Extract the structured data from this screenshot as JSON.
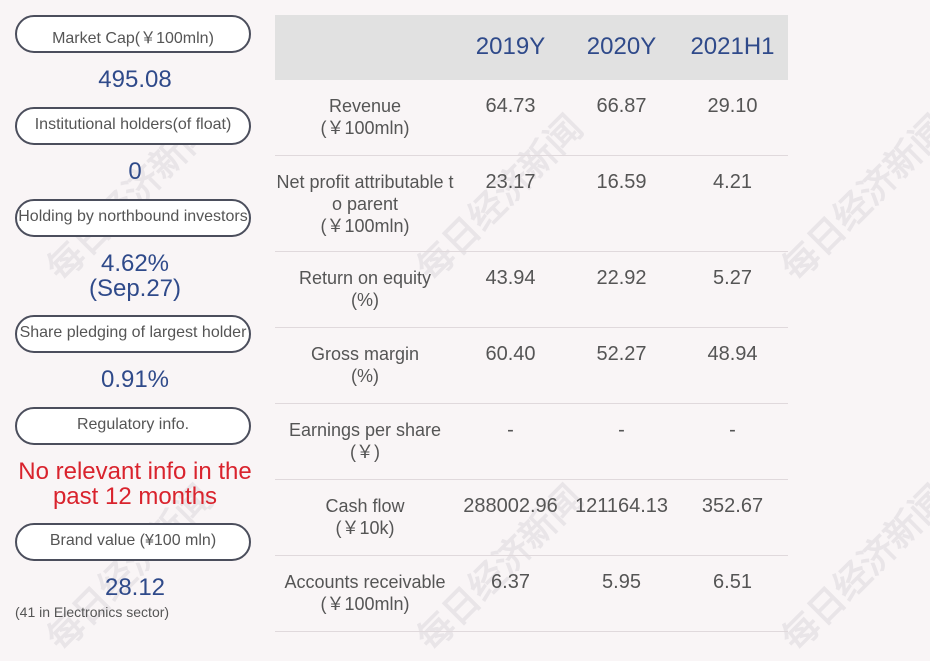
{
  "left": {
    "market_cap_label": "Market Cap(￥100mln)",
    "market_cap_value": "495.08",
    "institutional_label": "Institutional holders(of float)",
    "institutional_value": "0",
    "northbound_label": "Holding by northbound investors",
    "northbound_value": "4.62%",
    "northbound_date": "(Sep.27)",
    "pledging_label": "Share pledging of largest holder",
    "pledging_value": "0.91%",
    "regulatory_label": "Regulatory info.",
    "regulatory_line1": "No relevant info in the",
    "regulatory_line2": "past 12 months",
    "brand_label": "Brand value (¥100 mln)",
    "brand_value": "28.12",
    "brand_note": "(41 in Electronics sector)"
  },
  "table": {
    "headers": [
      "2019Y",
      "2020Y",
      "2021H1"
    ],
    "rows": [
      {
        "label1": "Revenue",
        "label2": "(￥100mln)",
        "label3": "",
        "values": [
          "64.73",
          "66.87",
          "29.10"
        ]
      },
      {
        "label1": "Net profit attributable t",
        "label2": "o parent",
        "label3": "(￥100mln)",
        "values": [
          "23.17",
          "16.59",
          "4.21"
        ]
      },
      {
        "label1": "Return on equity",
        "label2": "(%)",
        "label3": "",
        "values": [
          "43.94",
          "22.92",
          "5.27"
        ]
      },
      {
        "label1": "Gross margin",
        "label2": "(%)",
        "label3": "",
        "values": [
          "60.40",
          "52.27",
          "48.94"
        ]
      },
      {
        "label1": "Earnings per share",
        "label2": "(￥)",
        "label3": "",
        "values": [
          "-",
          "-",
          "-"
        ]
      },
      {
        "label1": "Cash flow",
        "label2": "(￥10k)",
        "label3": "",
        "values": [
          "288002.96",
          "121164.13",
          "352.67"
        ]
      },
      {
        "label1": "Accounts receivable",
        "label2": "(￥100mln)",
        "label3": "",
        "values": [
          "6.37",
          "5.95",
          "6.51"
        ]
      }
    ]
  },
  "watermark": "每日经济新闻",
  "colors": {
    "accent": "#2f4a8a",
    "alert": "#d9232d",
    "header_bg": "#e1e1e1"
  }
}
